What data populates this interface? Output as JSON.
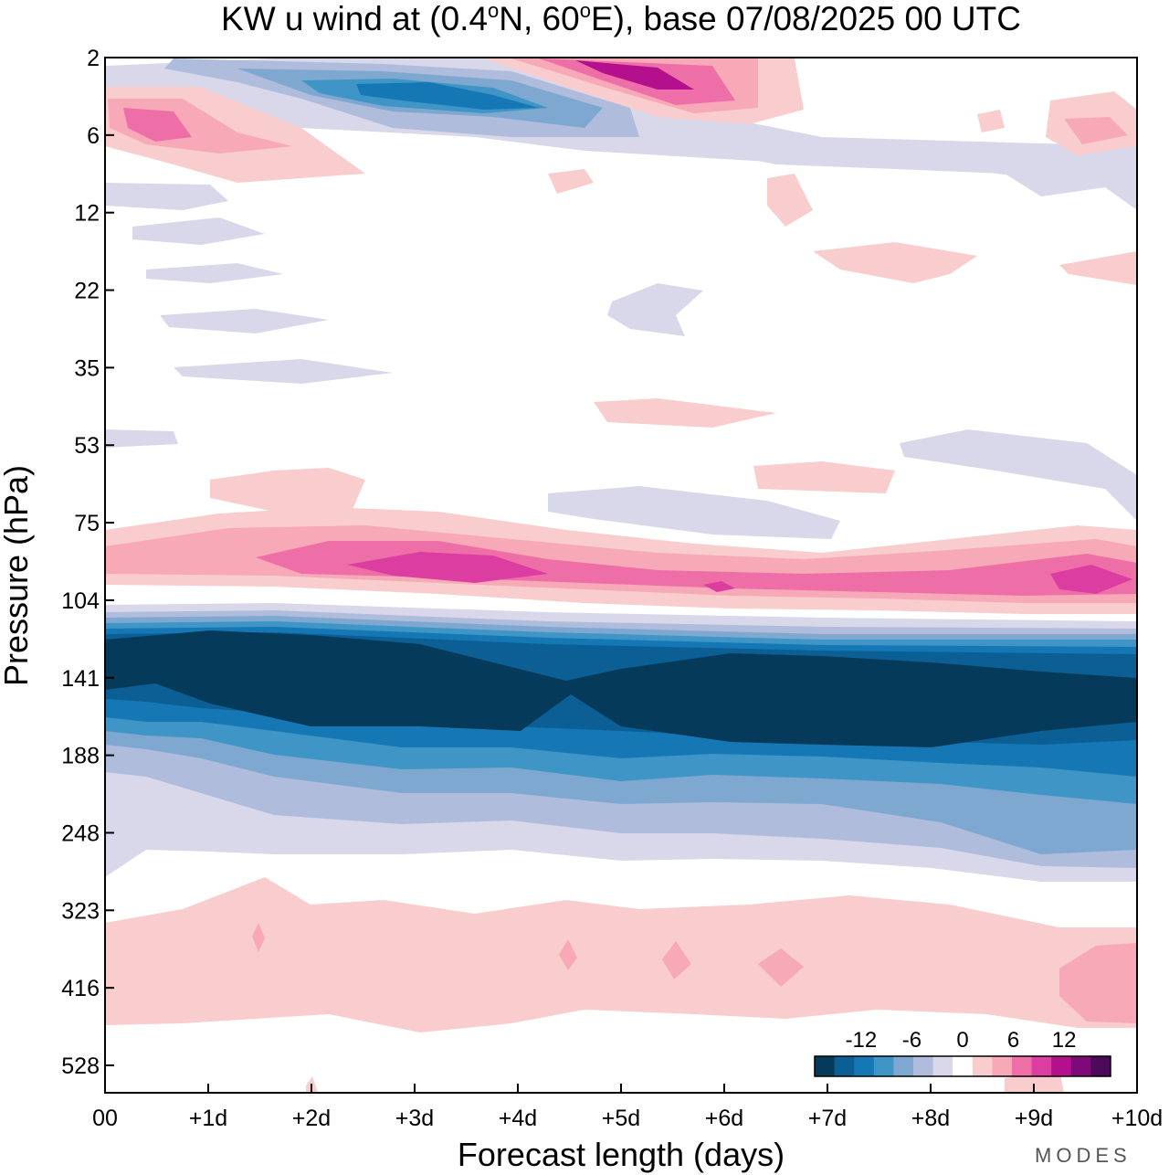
{
  "chart_data": {
    "type": "heatmap",
    "title": "KW u wind at (0.4°N, 60°E),  base 07/08/2025  00 UTC",
    "title_parts": {
      "prefix": "KW u wind at (0.4",
      "deg1": "o",
      "mid": "N, 60",
      "deg2": "o",
      "suffix": "E),  base 07/08/2025  00 UTC"
    },
    "xlabel": "Forecast length (days)",
    "ylabel": "Pressure (hPa)",
    "xlim": [
      0,
      10
    ],
    "x_ticks": [
      0,
      1,
      2,
      3,
      4,
      5,
      6,
      7,
      8,
      9,
      10
    ],
    "x_tick_labels": [
      "00",
      "+1d",
      "+2d",
      "+3d",
      "+4d",
      "+5d",
      "+6d",
      "+7d",
      "+8d",
      "+9d",
      "+10d"
    ],
    "y_tick_labels": [
      "2",
      "6",
      "12",
      "22",
      "35",
      "53",
      "75",
      "104",
      "141",
      "188",
      "248",
      "323",
      "416",
      "528"
    ],
    "y_scale": "log-pressure (top = 2 hPa)",
    "colorbar": {
      "labels": [
        "-12",
        "-6",
        "0",
        "6",
        "12"
      ],
      "label_values": [
        -12,
        -6,
        0,
        6,
        12
      ],
      "levels": [
        -15,
        -12.5,
        -10,
        -7.5,
        -5,
        -2.5,
        -1.25,
        1.25,
        2.5,
        5,
        7.5,
        10,
        12.5,
        15
      ],
      "colors": [
        "#053a5a",
        "#0b5f95",
        "#1578b4",
        "#3f95c5",
        "#7fa8d0",
        "#afbcdc",
        "#d8d8ea",
        "#ffffff",
        "#f9cdcd",
        "#f7a9b7",
        "#ee6fa7",
        "#db3ea0",
        "#b40f8c",
        "#7d0a78",
        "#4d0a5a"
      ]
    },
    "bands": [
      {
        "name": "stratosphere-east-upper",
        "value": -6,
        "x": [
          0.7,
          5.5
        ],
        "p": [
          2,
          6
        ]
      },
      {
        "name": "stratosphere-west-upper",
        "value": 12,
        "x": [
          4.0,
          6.8
        ],
        "p": [
          2,
          5
        ]
      },
      {
        "name": "stratosphere-west-left",
        "value": 8,
        "x": [
          0,
          2.5
        ],
        "p": [
          4,
          9
        ]
      },
      {
        "name": "upper-trop-westerly",
        "value": 10,
        "x": [
          0,
          10
        ],
        "p": [
          80,
          115
        ]
      },
      {
        "name": "tropopause-easterly",
        "value": -16,
        "x": [
          0,
          10
        ],
        "p": [
          120,
          210
        ]
      },
      {
        "name": "mid-trop-easterly",
        "value": -4,
        "x": [
          0,
          10
        ],
        "p": [
          170,
          320
        ]
      },
      {
        "name": "lower-trop-westerly",
        "value": 2.5,
        "x": [
          0,
          10
        ],
        "p": [
          330,
          500
        ]
      }
    ],
    "logo": "MODES"
  }
}
